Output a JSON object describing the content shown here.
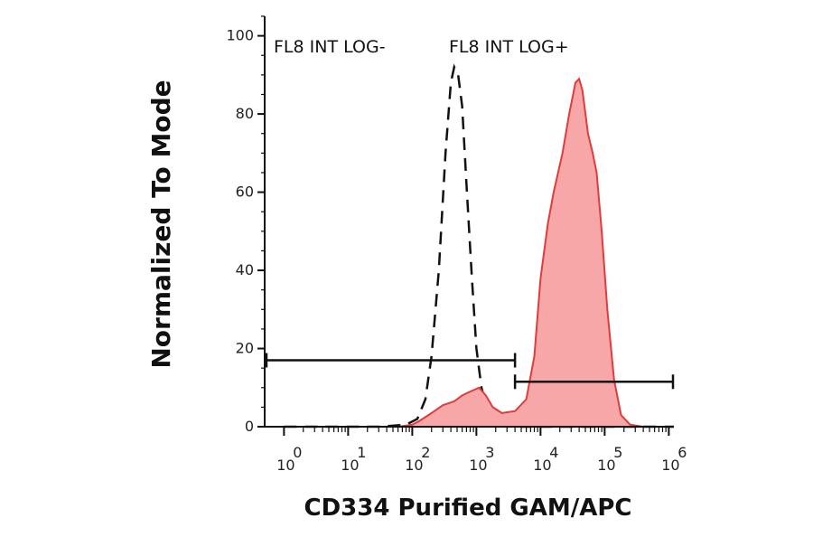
{
  "chart_data": {
    "type": "area",
    "xlabel": "CD334 Purified GAM/APC",
    "ylabel": "Normalized To Mode",
    "x_scale": "log",
    "xlim": [
      0.5,
      1200000
    ],
    "ylim": [
      0,
      105
    ],
    "y_ticks": [
      0,
      20,
      40,
      60,
      80,
      100
    ],
    "x_ticks": [
      {
        "value": 1,
        "base": "10",
        "exp": "0"
      },
      {
        "value": 10,
        "base": "10",
        "exp": "1"
      },
      {
        "value": 100,
        "base": "10",
        "exp": "2"
      },
      {
        "value": 1000,
        "base": "10",
        "exp": "3"
      },
      {
        "value": 10000,
        "base": "10",
        "exp": "4"
      },
      {
        "value": 100000,
        "base": "10",
        "exp": "5"
      },
      {
        "value": 1000000,
        "base": "10",
        "exp": "6"
      }
    ],
    "series": [
      {
        "style": "dashed",
        "color": "#111111",
        "points": [
          [
            1,
            0
          ],
          [
            30,
            0
          ],
          [
            80,
            0.5
          ],
          [
            120,
            2
          ],
          [
            160,
            7
          ],
          [
            200,
            18
          ],
          [
            260,
            40
          ],
          [
            330,
            70
          ],
          [
            400,
            88
          ],
          [
            450,
            92
          ],
          [
            520,
            90
          ],
          [
            600,
            82
          ],
          [
            700,
            62
          ],
          [
            850,
            38
          ],
          [
            1000,
            20
          ],
          [
            1200,
            10
          ],
          [
            1500,
            4
          ],
          [
            2000,
            1.5
          ],
          [
            3000,
            0.5
          ],
          [
            5000,
            0
          ],
          [
            1200000,
            0
          ]
        ]
      },
      {
        "style": "filled",
        "color": "#e23b3b",
        "fill": "#f7a7a7",
        "points": [
          [
            1,
            0
          ],
          [
            10,
            0
          ],
          [
            60,
            0
          ],
          [
            100,
            0.5
          ],
          [
            130,
            1.5
          ],
          [
            200,
            3.5
          ],
          [
            300,
            5.5
          ],
          [
            450,
            6.5
          ],
          [
            600,
            8
          ],
          [
            800,
            9
          ],
          [
            1100,
            10
          ],
          [
            1400,
            8
          ],
          [
            1800,
            5
          ],
          [
            2500,
            3.5
          ],
          [
            4000,
            4
          ],
          [
            6000,
            7
          ],
          [
            8000,
            18
          ],
          [
            10000,
            38
          ],
          [
            13000,
            52
          ],
          [
            16000,
            60
          ],
          [
            22000,
            70
          ],
          [
            28000,
            80
          ],
          [
            35000,
            88
          ],
          [
            40000,
            89
          ],
          [
            45000,
            86
          ],
          [
            55000,
            75
          ],
          [
            65000,
            70
          ],
          [
            75000,
            65
          ],
          [
            90000,
            50
          ],
          [
            110000,
            30
          ],
          [
            140000,
            12
          ],
          [
            180000,
            3
          ],
          [
            250000,
            0.5
          ],
          [
            400000,
            0
          ],
          [
            1200000,
            0
          ]
        ]
      }
    ],
    "gates": [
      {
        "label": "FL8 INT LOG-",
        "x_from": 0.5,
        "x_to": 4000,
        "y": 17
      },
      {
        "label": "FL8 INT LOG+",
        "x_from": 4000,
        "x_to": 1200000,
        "y": 11.5
      }
    ]
  }
}
